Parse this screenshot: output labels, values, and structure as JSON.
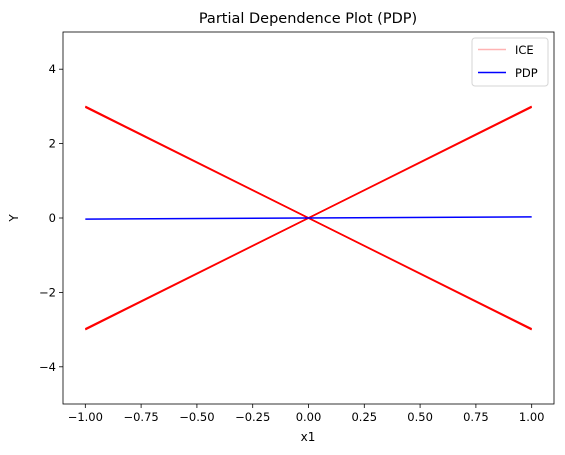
{
  "chart_data": {
    "type": "line",
    "title": "Partial Dependence Plot (PDP)",
    "xlabel": "x1",
    "ylabel": "Y",
    "xlim": [
      -1.1,
      1.1
    ],
    "ylim": [
      -5,
      5
    ],
    "xticks": [
      -1.0,
      -0.75,
      -0.5,
      -0.25,
      0.0,
      0.25,
      0.5,
      0.75,
      1.0
    ],
    "xtick_labels": [
      "−1.00",
      "−0.75",
      "−0.50",
      "−0.25",
      "0.00",
      "0.25",
      "0.50",
      "0.75",
      "1.00"
    ],
    "yticks": [
      -4,
      -2,
      0,
      2,
      4
    ],
    "ytick_labels": [
      "−4",
      "−2",
      "0",
      "2",
      "4"
    ],
    "grid": false,
    "legend_position": "top-right",
    "series": [
      {
        "name": "ICE",
        "color": "#ff0000",
        "legend_color": "#ffb3b3",
        "lines": [
          {
            "x": [
              -1.0,
              1.0
            ],
            "y": [
              3.0,
              -3.0
            ]
          },
          {
            "x": [
              -1.0,
              1.0
            ],
            "y": [
              2.98,
              -2.98
            ]
          },
          {
            "x": [
              -1.0,
              1.0
            ],
            "y": [
              -3.0,
              3.0
            ]
          },
          {
            "x": [
              -1.0,
              1.0
            ],
            "y": [
              -2.98,
              2.98
            ]
          }
        ]
      },
      {
        "name": "PDP",
        "color": "#0000ff",
        "lines": [
          {
            "x": [
              -1.0,
              1.0
            ],
            "y": [
              -0.03,
              0.03
            ]
          }
        ]
      }
    ]
  }
}
